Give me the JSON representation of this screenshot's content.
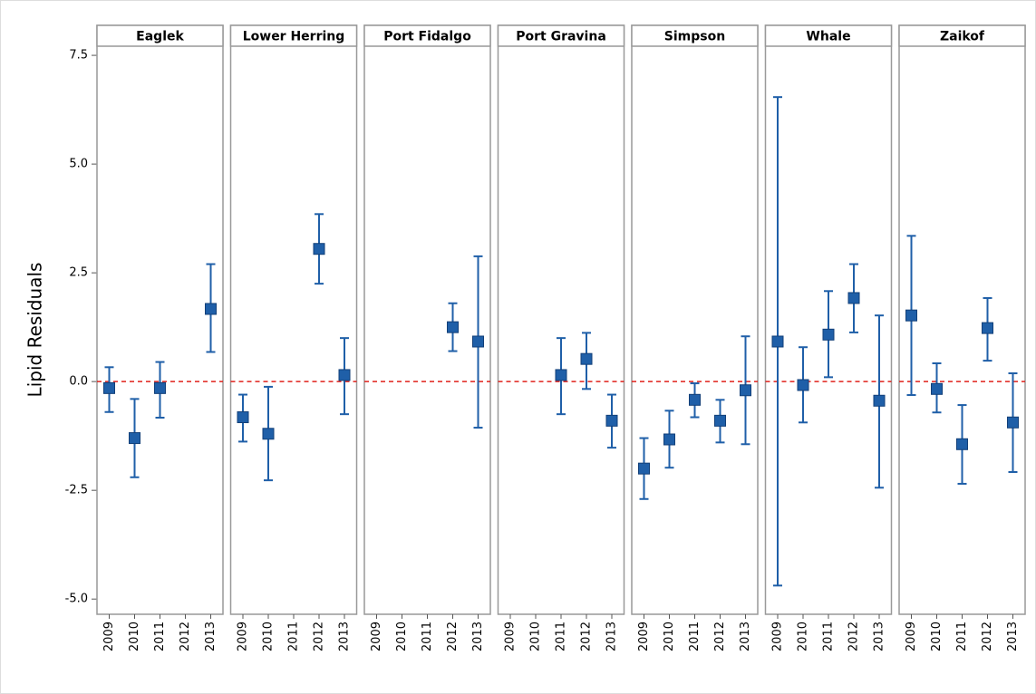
{
  "chart_data": {
    "type": "errorbar",
    "ylabel": "Lipid Residuals",
    "ylim": [
      -5.35,
      7.71
    ],
    "yticks": [
      {
        "value": -5,
        "label": "-5.0"
      },
      {
        "value": -2.5,
        "label": "-2.5"
      },
      {
        "value": 0,
        "label": "0.0"
      },
      {
        "value": 2.5,
        "label": "2.5"
      },
      {
        "value": 5,
        "label": "5.0"
      },
      {
        "value": 7.5,
        "label": "7.5"
      }
    ],
    "refline": 0,
    "refline_color": "#e0201b",
    "color": "#1f5fa8",
    "categories": [
      "2009",
      "2010",
      "2011",
      "2012",
      "2013"
    ],
    "panels": [
      {
        "name": "Eaglek",
        "values": [
          -0.15,
          -1.3,
          -0.15,
          null,
          1.67
        ],
        "lower": [
          -0.7,
          -2.2,
          -0.83,
          null,
          0.68
        ],
        "upper": [
          0.33,
          -0.4,
          0.45,
          null,
          2.7
        ]
      },
      {
        "name": "Lower Herring",
        "values": [
          -0.82,
          -1.2,
          null,
          3.05,
          0.15
        ],
        "lower": [
          -1.38,
          -2.27,
          null,
          2.25,
          -0.75
        ],
        "upper": [
          -0.3,
          -0.12,
          null,
          3.85,
          1.0
        ]
      },
      {
        "name": "Port Fidalgo",
        "values": [
          null,
          null,
          null,
          1.25,
          0.92
        ],
        "lower": [
          null,
          null,
          null,
          0.7,
          -1.06
        ],
        "upper": [
          null,
          null,
          null,
          1.8,
          2.88
        ]
      },
      {
        "name": "Port Gravina",
        "values": [
          null,
          null,
          0.15,
          0.52,
          -0.9
        ],
        "lower": [
          null,
          null,
          -0.75,
          -0.17,
          -1.52
        ],
        "upper": [
          null,
          null,
          1.0,
          1.12,
          -0.3
        ]
      },
      {
        "name": "Simpson",
        "values": [
          -2.0,
          -1.33,
          -0.42,
          -0.9,
          -0.2
        ],
        "lower": [
          -2.7,
          -1.98,
          -0.82,
          -1.4,
          -1.44
        ],
        "upper": [
          -1.3,
          -0.67,
          -0.04,
          -0.42,
          1.04
        ]
      },
      {
        "name": "Whale",
        "values": [
          0.92,
          -0.08,
          1.08,
          1.92,
          -0.44
        ],
        "lower": [
          -4.69,
          -0.94,
          0.1,
          1.13,
          -2.44
        ],
        "upper": [
          6.54,
          0.79,
          2.08,
          2.7,
          1.52
        ]
      },
      {
        "name": "Zaikof",
        "values": [
          1.52,
          -0.17,
          -1.44,
          1.23,
          -0.94
        ],
        "lower": [
          -0.31,
          -0.71,
          -2.35,
          0.48,
          -2.08
        ],
        "upper": [
          3.35,
          0.42,
          -0.54,
          1.92,
          0.19
        ]
      }
    ]
  }
}
